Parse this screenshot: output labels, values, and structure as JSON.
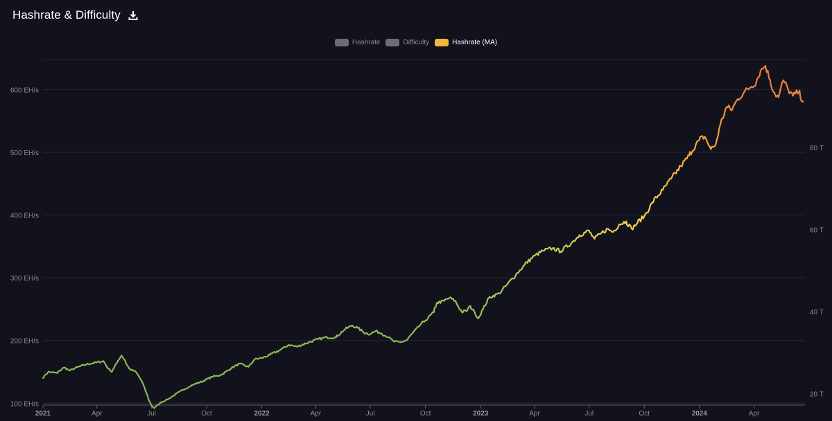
{
  "header": {
    "title": "Hashrate & Difficulty",
    "download_icon": "download-icon"
  },
  "legend": [
    {
      "label": "Hashrate",
      "color": "#6b6d76",
      "active": false
    },
    {
      "label": "Difficulty",
      "color": "#6b6d76",
      "active": false
    },
    {
      "label": "Hashrate (MA)",
      "color": "#f5b73a",
      "active": true
    }
  ],
  "chart_data": {
    "type": "line",
    "title": "Hashrate & Difficulty",
    "grid": true,
    "legend_position": "top-center",
    "y_left": {
      "ticks": [
        {
          "value": 100,
          "label": "100 EH/s"
        },
        {
          "value": 200,
          "label": "200 EH/s"
        },
        {
          "value": 300,
          "label": "300 EH/s"
        },
        {
          "value": 400,
          "label": "400 EH/s"
        },
        {
          "value": 500,
          "label": "500 EH/s"
        },
        {
          "value": 600,
          "label": "600 EH/s"
        }
      ],
      "range": [
        97,
        660
      ]
    },
    "y_right": {
      "ticks": [
        {
          "value": 20,
          "label": "20 T"
        },
        {
          "value": 40,
          "label": "40 T"
        },
        {
          "value": 60,
          "label": "60 T"
        },
        {
          "value": 80,
          "label": "80 T"
        }
      ],
      "range": [
        17.2,
        103.3
      ]
    },
    "x_axis": {
      "range": [
        "2021-01-01",
        "2024-06-25"
      ],
      "ticks": [
        {
          "date": "2021-01-01",
          "label": "2021",
          "bold": true
        },
        {
          "date": "2021-04-01",
          "label": "Apr",
          "bold": false
        },
        {
          "date": "2021-07-01",
          "label": "Jul",
          "bold": false
        },
        {
          "date": "2021-10-01",
          "label": "Oct",
          "bold": false
        },
        {
          "date": "2022-01-01",
          "label": "2022",
          "bold": true
        },
        {
          "date": "2022-04-01",
          "label": "Apr",
          "bold": false
        },
        {
          "date": "2022-07-01",
          "label": "Jul",
          "bold": false
        },
        {
          "date": "2022-10-01",
          "label": "Oct",
          "bold": false
        },
        {
          "date": "2023-01-01",
          "label": "2023",
          "bold": true
        },
        {
          "date": "2023-04-01",
          "label": "Apr",
          "bold": false
        },
        {
          "date": "2023-07-01",
          "label": "Jul",
          "bold": false
        },
        {
          "date": "2023-10-01",
          "label": "Oct",
          "bold": false
        },
        {
          "date": "2024-01-01",
          "label": "2024",
          "bold": true
        },
        {
          "date": "2024-04-01",
          "label": "Apr",
          "bold": false
        }
      ]
    },
    "series": [
      {
        "name": "Hashrate (MA)",
        "unit": "EH/s",
        "color_stops": [
          {
            "value": 200,
            "color": "#8ab657"
          },
          {
            "value": 330,
            "color": "#b9c85a"
          },
          {
            "value": 400,
            "color": "#f5d150"
          },
          {
            "value": 500,
            "color": "#f5a73c"
          },
          {
            "value": 620,
            "color": "#ec7a3c"
          }
        ],
        "points": [
          [
            "2021-01-01",
            140
          ],
          [
            "2021-01-10",
            150
          ],
          [
            "2021-01-25",
            148
          ],
          [
            "2021-02-05",
            157
          ],
          [
            "2021-02-15",
            152
          ],
          [
            "2021-03-01",
            158
          ],
          [
            "2021-03-15",
            162
          ],
          [
            "2021-04-01",
            165
          ],
          [
            "2021-04-12",
            167
          ],
          [
            "2021-04-20",
            155
          ],
          [
            "2021-04-26",
            150
          ],
          [
            "2021-05-05",
            165
          ],
          [
            "2021-05-12",
            176
          ],
          [
            "2021-05-18",
            168
          ],
          [
            "2021-05-25",
            155
          ],
          [
            "2021-06-05",
            150
          ],
          [
            "2021-06-15",
            135
          ],
          [
            "2021-06-25",
            110
          ],
          [
            "2021-07-02",
            95
          ],
          [
            "2021-07-06",
            92
          ],
          [
            "2021-07-15",
            100
          ],
          [
            "2021-08-01",
            108
          ],
          [
            "2021-08-20",
            120
          ],
          [
            "2021-09-10",
            130
          ],
          [
            "2021-09-25",
            135
          ],
          [
            "2021-10-10",
            142
          ],
          [
            "2021-10-25",
            145
          ],
          [
            "2021-11-10",
            155
          ],
          [
            "2021-11-25",
            163
          ],
          [
            "2021-12-10",
            158
          ],
          [
            "2021-12-20",
            170
          ],
          [
            "2022-01-01",
            172
          ],
          [
            "2022-01-15",
            177
          ],
          [
            "2022-02-01",
            185
          ],
          [
            "2022-02-15",
            193
          ],
          [
            "2022-03-01",
            190
          ],
          [
            "2022-03-20",
            197
          ],
          [
            "2022-04-05",
            202
          ],
          [
            "2022-04-20",
            205
          ],
          [
            "2022-05-05",
            205
          ],
          [
            "2022-05-20",
            218
          ],
          [
            "2022-06-01",
            224
          ],
          [
            "2022-06-10",
            220
          ],
          [
            "2022-06-20",
            213
          ],
          [
            "2022-07-01",
            210
          ],
          [
            "2022-07-10",
            215
          ],
          [
            "2022-07-20",
            211
          ],
          [
            "2022-08-01",
            205
          ],
          [
            "2022-08-10",
            198
          ],
          [
            "2022-08-20",
            197
          ],
          [
            "2022-09-01",
            201
          ],
          [
            "2022-09-10",
            212
          ],
          [
            "2022-09-20",
            222
          ],
          [
            "2022-10-01",
            232
          ],
          [
            "2022-10-15",
            245
          ],
          [
            "2022-10-20",
            260
          ],
          [
            "2022-11-01",
            263
          ],
          [
            "2022-11-10",
            268
          ],
          [
            "2022-11-20",
            263
          ],
          [
            "2022-12-01",
            245
          ],
          [
            "2022-12-10",
            248
          ],
          [
            "2022-12-15",
            255
          ],
          [
            "2022-12-22",
            245
          ],
          [
            "2022-12-28",
            235
          ],
          [
            "2023-01-05",
            250
          ],
          [
            "2023-01-15",
            268
          ],
          [
            "2023-02-01",
            275
          ],
          [
            "2023-02-15",
            290
          ],
          [
            "2023-03-01",
            305
          ],
          [
            "2023-03-15",
            320
          ],
          [
            "2023-04-01",
            335
          ],
          [
            "2023-04-15",
            343
          ],
          [
            "2023-05-01",
            347
          ],
          [
            "2023-05-15",
            342
          ],
          [
            "2023-06-01",
            355
          ],
          [
            "2023-06-15",
            368
          ],
          [
            "2023-07-01",
            375
          ],
          [
            "2023-07-10",
            362
          ],
          [
            "2023-07-20",
            370
          ],
          [
            "2023-08-01",
            378
          ],
          [
            "2023-08-10",
            373
          ],
          [
            "2023-08-20",
            385
          ],
          [
            "2023-09-01",
            390
          ],
          [
            "2023-09-10",
            378
          ],
          [
            "2023-09-20",
            388
          ],
          [
            "2023-10-01",
            398
          ],
          [
            "2023-10-15",
            420
          ],
          [
            "2023-11-01",
            440
          ],
          [
            "2023-11-15",
            458
          ],
          [
            "2023-12-01",
            478
          ],
          [
            "2023-12-15",
            495
          ],
          [
            "2024-01-01",
            520
          ],
          [
            "2024-01-10",
            525
          ],
          [
            "2024-01-20",
            505
          ],
          [
            "2024-01-28",
            512
          ],
          [
            "2024-02-05",
            545
          ],
          [
            "2024-02-15",
            572
          ],
          [
            "2024-02-25",
            568
          ],
          [
            "2024-03-05",
            585
          ],
          [
            "2024-03-15",
            595
          ],
          [
            "2024-03-25",
            603
          ],
          [
            "2024-04-05",
            612
          ],
          [
            "2024-04-12",
            630
          ],
          [
            "2024-04-20",
            638
          ],
          [
            "2024-04-28",
            615
          ],
          [
            "2024-05-05",
            595
          ],
          [
            "2024-05-12",
            588
          ],
          [
            "2024-05-20",
            615
          ],
          [
            "2024-05-28",
            600
          ],
          [
            "2024-06-05",
            590
          ],
          [
            "2024-06-15",
            597
          ],
          [
            "2024-06-22",
            581
          ]
        ]
      }
    ]
  }
}
